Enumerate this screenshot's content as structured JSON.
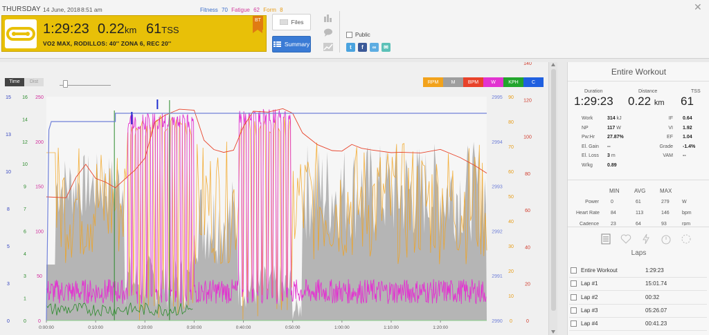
{
  "header": {
    "day": "THURSDAY",
    "date": "14 June, 2018",
    "time": "8:51 am",
    "fitness_label": "Fitness",
    "fitness_value": "70",
    "fatigue_label": "Fatigue",
    "fatigue_value": "62",
    "form_label": "Form",
    "form_value": "8",
    "duration": "1:29:23",
    "distance": "0.22",
    "distance_unit": "km",
    "tss": "61",
    "tss_unit": "TSS",
    "workout_name": "VO2 MAX, RODILLOS: 40'' ZONA 6, REC 20''",
    "badge": "BT",
    "files_label": "Files",
    "summary_label": "Summary",
    "public_label": "Public",
    "share": [
      "t",
      "f",
      "∞",
      "✉"
    ],
    "close_glyph": "✕"
  },
  "chart": {
    "toggle_time": "Time",
    "toggle_dist": "Dist",
    "legend": [
      {
        "label": "RPM",
        "color": "#f2a21b"
      },
      {
        "label": "M",
        "color": "#9e9e9e"
      },
      {
        "label": "BPM",
        "color": "#e8432a"
      },
      {
        "label": "W",
        "color": "#e233d0"
      },
      {
        "label": "KPH",
        "color": "#22a52d"
      },
      {
        "label": "C",
        "color": "#2060e0"
      }
    ],
    "x_ticks": [
      "0:00:00",
      "0:10:00",
      "0:20:00",
      "0:30:00",
      "0:40:00",
      "0:50:00",
      "1:00:00",
      "1:10:00",
      "1:20:00"
    ],
    "axis_blue": [
      "0",
      "3",
      "5",
      "8",
      "10",
      "13",
      "15"
    ],
    "axis_green": [
      "0",
      "1",
      "3",
      "4",
      "6",
      "7",
      "9",
      "10",
      "12",
      "14",
      "16"
    ],
    "axis_magenta": [
      "0",
      "50",
      "100",
      "150",
      "200",
      "250"
    ],
    "axis_alt": [
      "2990",
      "2991",
      "2992",
      "2993",
      "2994",
      "2995"
    ],
    "axis_rpm": [
      "0",
      "10",
      "20",
      "30",
      "40",
      "50",
      "60",
      "70",
      "80",
      "90"
    ],
    "axis_bpm": [
      "0",
      "20",
      "40",
      "60",
      "80",
      "100",
      "120",
      "140"
    ]
  },
  "chart_data": {
    "type": "line",
    "x_unit": "minutes",
    "x_range": [
      0,
      89.4
    ],
    "series": [
      {
        "name": "C",
        "axis": "axis_alt",
        "points": [
          [
            0,
            2990
          ],
          [
            0.5,
            2994.6
          ],
          [
            1,
            2994.8
          ],
          [
            14,
            2994.8
          ],
          [
            14,
            2995
          ],
          [
            89.4,
            2995
          ]
        ]
      },
      {
        "name": "BPM",
        "axis": "axis_bpm",
        "points": [
          [
            0,
            84
          ],
          [
            4,
            82
          ],
          [
            6,
            95
          ],
          [
            8,
            105
          ],
          [
            10,
            95
          ],
          [
            12,
            92
          ],
          [
            14,
            88
          ],
          [
            16,
            94
          ],
          [
            18,
            100
          ],
          [
            20,
            108
          ],
          [
            22,
            132
          ],
          [
            24,
            138
          ],
          [
            27,
            141
          ],
          [
            30,
            140
          ],
          [
            32,
            120
          ],
          [
            34,
            116
          ],
          [
            36,
            113
          ],
          [
            38,
            114
          ],
          [
            40,
            131
          ],
          [
            42,
            139
          ],
          [
            45,
            141
          ],
          [
            48,
            142
          ],
          [
            50,
            138
          ],
          [
            52,
            125
          ],
          [
            55,
            118
          ],
          [
            58,
            114
          ],
          [
            60,
            115
          ],
          [
            62,
            118
          ],
          [
            64,
            116
          ],
          [
            66,
            115
          ],
          [
            70,
            114
          ],
          [
            72,
            112
          ],
          [
            76,
            111
          ],
          [
            80,
            115
          ],
          [
            84,
            110
          ],
          [
            87,
            104
          ],
          [
            89.4,
            100
          ]
        ]
      },
      {
        "name": "W",
        "axis": "axis_magenta",
        "intervals": "40s on / 20s off",
        "blocks": [
          [
            16.5,
            30,
            250
          ],
          [
            39,
            50,
            255
          ]
        ],
        "base": 30
      }
    ]
  }
}
